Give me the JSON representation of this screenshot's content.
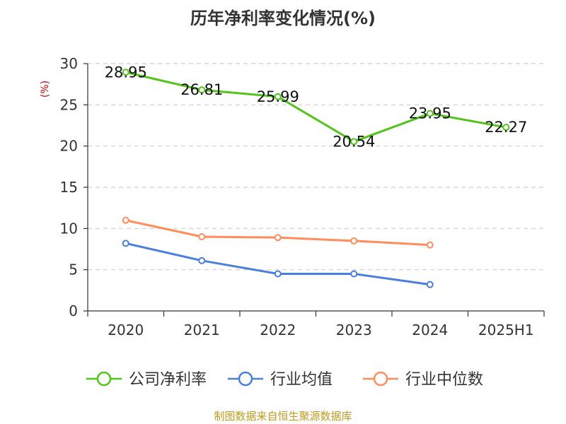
{
  "colors": {
    "series": [
      "#52c41a",
      "#4a7fe0",
      "#ff8c5a"
    ],
    "ylabel": "#cc0000",
    "source": "#c29a20",
    "grid": "#cfcfcf",
    "axis": "#333333",
    "title": "#333333"
  },
  "chart_data": {
    "type": "line",
    "title": "历年净利率变化情况(%)",
    "ylabel": "(%)",
    "xlabel": "",
    "categories": [
      "2020",
      "2021",
      "2022",
      "2023",
      "2024",
      "2025H1"
    ],
    "ylim": [
      0,
      30
    ],
    "yticks": [
      0,
      5,
      10,
      15,
      20,
      25,
      30
    ],
    "grid": true,
    "legend_position": "bottom",
    "series": [
      {
        "name": "公司净利率",
        "values": [
          28.95,
          26.81,
          25.99,
          20.54,
          23.95,
          22.27
        ],
        "data_labels": [
          "28.95",
          "26.81",
          "25.99",
          "20.54",
          "23.95",
          "22.27"
        ],
        "show_labels": true
      },
      {
        "name": "行业均值",
        "values": [
          8.2,
          6.1,
          4.5,
          4.5,
          3.2,
          null
        ],
        "show_labels": false
      },
      {
        "name": "行业中位数",
        "values": [
          11.0,
          9.0,
          8.9,
          8.5,
          8.0,
          null
        ],
        "show_labels": false
      }
    ]
  },
  "footer": {
    "source": "制图数据来自恒生聚源数据库"
  }
}
